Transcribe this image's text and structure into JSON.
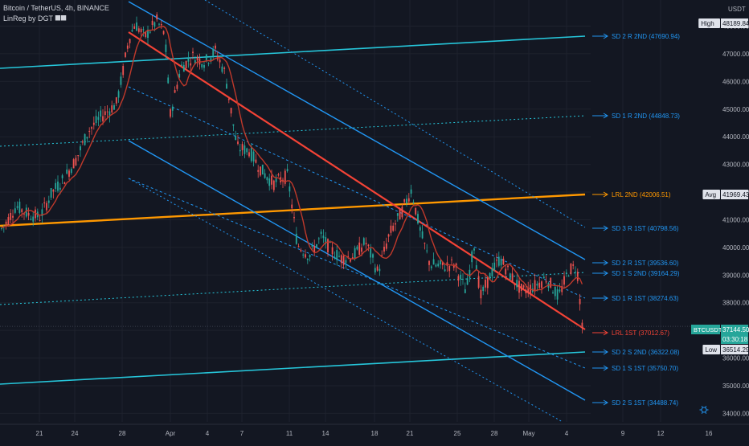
{
  "header": {
    "symbol_line": "Bitcoin / TetherUS, 4h, BINANCE",
    "indicator_line": "LinReg by DGT ⯀⯀"
  },
  "colors": {
    "background": "#131722",
    "candle_up": "#26a69a",
    "candle_down": "#ef5350",
    "ma_line": "#c0392b",
    "second_channel": "#2196f3",
    "first_channel": "#26c6da",
    "lrl_1st": "#f44336",
    "lrl_2nd": "#ff9800",
    "grid": "#1e222d",
    "axis_text": "#b2b5be"
  },
  "chart_data": {
    "type": "candlestick",
    "price_unit": "USDT",
    "y_range": [
      34000,
      48500
    ],
    "y_ticks": [
      "48000.00",
      "47000.00",
      "46000.00",
      "45000.00",
      "44000.00",
      "43000.00",
      "42000.00",
      "41000.00",
      "40000.00",
      "39000.00",
      "38000.00",
      "37000.00",
      "36000.00",
      "35000.00",
      "34000.00"
    ],
    "x_ticks": [
      "21",
      "24",
      "28",
      "Apr",
      "4",
      "7",
      "11",
      "14",
      "18",
      "21",
      "25",
      "28",
      "May",
      "4",
      "9",
      "12",
      "16"
    ],
    "channel_labels": [
      {
        "key": "sd2r2",
        "text": "SD 2 R 2ND (47690.94)",
        "value": 47690.94,
        "color": "#2196f3"
      },
      {
        "key": "sd1r2",
        "text": "SD 1 R 2ND (44848.73)",
        "value": 44848.73,
        "color": "#2196f3"
      },
      {
        "key": "lrl2",
        "text": "LRL 2ND (42006.51)",
        "value": 42006.51,
        "color": "#ff9800"
      },
      {
        "key": "sd3r1",
        "text": "SD 3 R 1ST (40798.56)",
        "value": 40798.56,
        "color": "#2196f3"
      },
      {
        "key": "sd2r1",
        "text": "SD 2 R 1ST (39536.60)",
        "value": 39536.6,
        "color": "#2196f3"
      },
      {
        "key": "sd1s2",
        "text": "SD 1 S 2ND (39164.29)",
        "value": 39164.29,
        "color": "#2196f3"
      },
      {
        "key": "sd1r1",
        "text": "SD 1 R 1ST (38274.63)",
        "value": 38274.63,
        "color": "#2196f3"
      },
      {
        "key": "lrl1",
        "text": "LRL 1ST (37012.67)",
        "value": 37012.67,
        "color": "#f44336"
      },
      {
        "key": "sd2s2",
        "text": "SD 2 S 2ND (36322.08)",
        "value": 36322.08,
        "color": "#2196f3"
      },
      {
        "key": "sd1s1",
        "text": "SD 1 S 1ST (35750.70)",
        "value": 35750.7,
        "color": "#2196f3"
      },
      {
        "key": "sd2s1",
        "text": "SD 2 S 1ST (34488.74)",
        "value": 34488.74,
        "color": "#2196f3"
      }
    ],
    "axis_tags": [
      {
        "key": "high_label",
        "text": "High",
        "value": 48189.84
      },
      {
        "key": "high_value",
        "text": "48189.84",
        "value": 48189.84
      },
      {
        "key": "avg_label",
        "text": "Avg",
        "value": 41969.43
      },
      {
        "key": "avg_value",
        "text": "41969.43",
        "value": 41969.43
      },
      {
        "key": "sym_label",
        "text": "BTCUSDT",
        "value": 37144.5
      },
      {
        "key": "sym_value",
        "text": "37144.50",
        "value": 37144.5
      },
      {
        "key": "countdown",
        "text": "03:30:18",
        "value": 37144.5
      },
      {
        "key": "low_label",
        "text": "Low",
        "value": 36514.29
      },
      {
        "key": "low_value",
        "text": "36514.29",
        "value": 36514.29
      }
    ],
    "usdt_label": "USDT",
    "last_price": 37144.5
  },
  "ui": {
    "settings_icon": "gear-icon"
  }
}
